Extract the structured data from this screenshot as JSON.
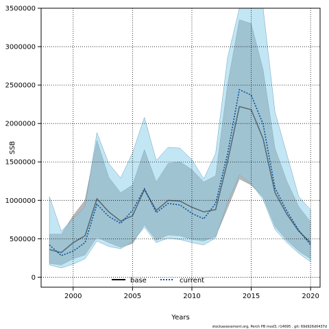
{
  "chart_data": {
    "type": "line",
    "xlabel": "Years",
    "ylabel": "SSB",
    "xlim": [
      1997.3,
      2020.8
    ],
    "ylim": [
      -130000,
      3500000
    ],
    "xticks": [
      2000,
      2005,
      2010,
      2015,
      2020
    ],
    "yticks": [
      0,
      500000,
      1000000,
      1500000,
      2000000,
      2500000,
      3000000,
      3500000
    ],
    "grid": true,
    "legend_position": "bottom-center",
    "x": [
      1998,
      1999,
      2000,
      2001,
      2002,
      2003,
      2004,
      2005,
      2006,
      2007,
      2008,
      2009,
      2010,
      2011,
      2012,
      2013,
      2014,
      2015,
      2016,
      2017,
      2018,
      2019,
      2020
    ],
    "series": [
      {
        "name": "base",
        "color": "#000000",
        "dash": "solid",
        "band_color": "#808080",
        "values": [
          360000,
          320000,
          450000,
          540000,
          1020000,
          850000,
          730000,
          800000,
          1140000,
          870000,
          1000000,
          990000,
          910000,
          850000,
          880000,
          1500000,
          2220000,
          2180000,
          1800000,
          1100000,
          820000,
          600000,
          450000
        ],
        "lower": [
          180000,
          160000,
          240000,
          290000,
          520000,
          450000,
          390000,
          440000,
          680000,
          480000,
          550000,
          540000,
          490000,
          470000,
          530000,
          900000,
          1280000,
          1200000,
          1040000,
          660000,
          480000,
          340000,
          240000
        ],
        "upper": [
          560000,
          560000,
          800000,
          1000000,
          1780000,
          1300000,
          1100000,
          1200000,
          1660000,
          1240000,
          1480000,
          1500000,
          1400000,
          1240000,
          1320000,
          2500000,
          3350000,
          3300000,
          2700000,
          1680000,
          1250000,
          920000,
          720000
        ]
      },
      {
        "name": "current",
        "color": "#00509a",
        "dash": "dotted",
        "band_color": "#87ceeb",
        "values": [
          420000,
          280000,
          340000,
          450000,
          950000,
          790000,
          700000,
          870000,
          1150000,
          840000,
          960000,
          940000,
          830000,
          760000,
          960000,
          1600000,
          2440000,
          2370000,
          1990000,
          1160000,
          860000,
          610000,
          420000
        ],
        "lower": [
          160000,
          120000,
          170000,
          240000,
          470000,
          400000,
          370000,
          460000,
          650000,
          450000,
          510000,
          490000,
          450000,
          420000,
          510000,
          970000,
          1330000,
          1220000,
          1010000,
          620000,
          450000,
          310000,
          200000
        ],
        "upper": [
          1050000,
          600000,
          760000,
          920000,
          1880000,
          1480000,
          1290000,
          1620000,
          2080000,
          1520000,
          1690000,
          1680000,
          1530000,
          1280000,
          1610000,
          2850000,
          3980000,
          4100000,
          3600000,
          2150000,
          1600000,
          1050000,
          880000
        ]
      }
    ]
  },
  "footer_text": "stockassessment.org, Perch PB mod3, r14695 , git: 69d926d0437d"
}
